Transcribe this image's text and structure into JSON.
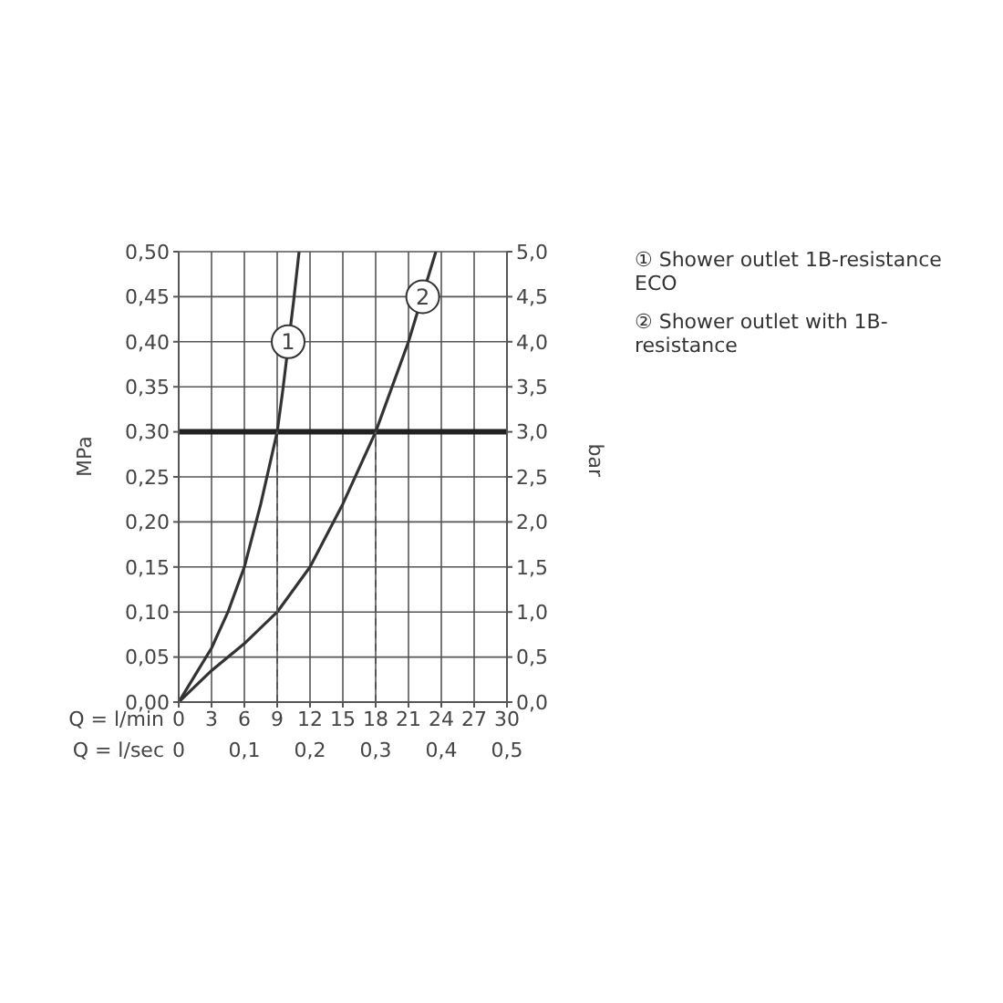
{
  "chart_data": {
    "type": "line",
    "xlabel": "Q = l/min",
    "x2label": "Q = l/sec",
    "ylabel": "MPa",
    "y2label": "bar",
    "xlim": [
      0,
      30
    ],
    "xticks": [
      0,
      3,
      6,
      9,
      12,
      15,
      18,
      21,
      24,
      27,
      30
    ],
    "x2lim": [
      0,
      0.5
    ],
    "x2ticks": [
      0,
      {
        "value": 0.1,
        "label": "0,1"
      },
      {
        "value": 0.2,
        "label": "0,2"
      },
      {
        "value": 0.3,
        "label": "0,3"
      },
      {
        "value": 0.4,
        "label": "0,4"
      },
      {
        "value": 0.5,
        "label": "0,5"
      }
    ],
    "ylim": [
      0,
      0.5
    ],
    "yticks": [
      {
        "value": 0,
        "label": "0,00"
      },
      {
        "value": 0.05,
        "label": "0,05"
      },
      {
        "value": 0.1,
        "label": "0,10"
      },
      {
        "value": 0.15,
        "label": "0,15"
      },
      {
        "value": 0.2,
        "label": "0,20"
      },
      {
        "value": 0.25,
        "label": "0,25"
      },
      {
        "value": 0.3,
        "label": "0,30"
      },
      {
        "value": 0.35,
        "label": "0,35"
      },
      {
        "value": 0.4,
        "label": "0,40"
      },
      {
        "value": 0.45,
        "label": "0,45"
      },
      {
        "value": 0.5,
        "label": "0,50"
      }
    ],
    "y2lim": [
      0,
      5
    ],
    "y2ticks": [
      {
        "value": 0,
        "label": "0,0"
      },
      {
        "value": 0.5,
        "label": "0,5"
      },
      {
        "value": 1,
        "label": "1,0"
      },
      {
        "value": 1.5,
        "label": "1,5"
      },
      {
        "value": 2,
        "label": "2,0"
      },
      {
        "value": 2.5,
        "label": "2,5"
      },
      {
        "value": 3,
        "label": "3,0"
      },
      {
        "value": 3.5,
        "label": "3,5"
      },
      {
        "value": 4,
        "label": "4,0"
      },
      {
        "value": 4.5,
        "label": "4,5"
      },
      {
        "value": 5,
        "label": "5,0"
      }
    ],
    "grid": true,
    "legend": "right",
    "marker": "none",
    "series": [
      {
        "name": "① Shower outlet 1B-resistance ECO",
        "color": "#333333",
        "x": [
          0,
          1.5,
          3,
          4.5,
          6,
          7.5,
          9,
          9.5,
          10.5,
          11
        ],
        "values": [
          0,
          0.03,
          0.06,
          0.1,
          0.15,
          0.22,
          0.3,
          0.345,
          0.445,
          0.5
        ]
      },
      {
        "name": "② Shower outlet with 1B-resistance",
        "color": "#333333",
        "x": [
          0,
          3,
          6,
          9,
          12,
          15,
          18,
          21,
          23.5
        ],
        "values": [
          0,
          0.035,
          0.065,
          0.1,
          0.15,
          0.22,
          0.3,
          0.4,
          0.5
        ]
      },
      {
        "color": "#555555",
        "line_style": "dashed",
        "x": [
          9,
          9
        ],
        "values": [
          0,
          0.3
        ]
      },
      {
        "color": "#555555",
        "line_style": "dashed",
        "x": [
          18,
          18
        ],
        "values": [
          0,
          0.3
        ]
      }
    ],
    "ref_lines": [
      {
        "axis": "y",
        "value": 0.3,
        "color": "#222222"
      }
    ],
    "annotations": [
      {
        "text": "1",
        "x": 10,
        "y": 0.4
      },
      {
        "text": "2",
        "x": 22.3,
        "y": 0.45
      }
    ]
  }
}
